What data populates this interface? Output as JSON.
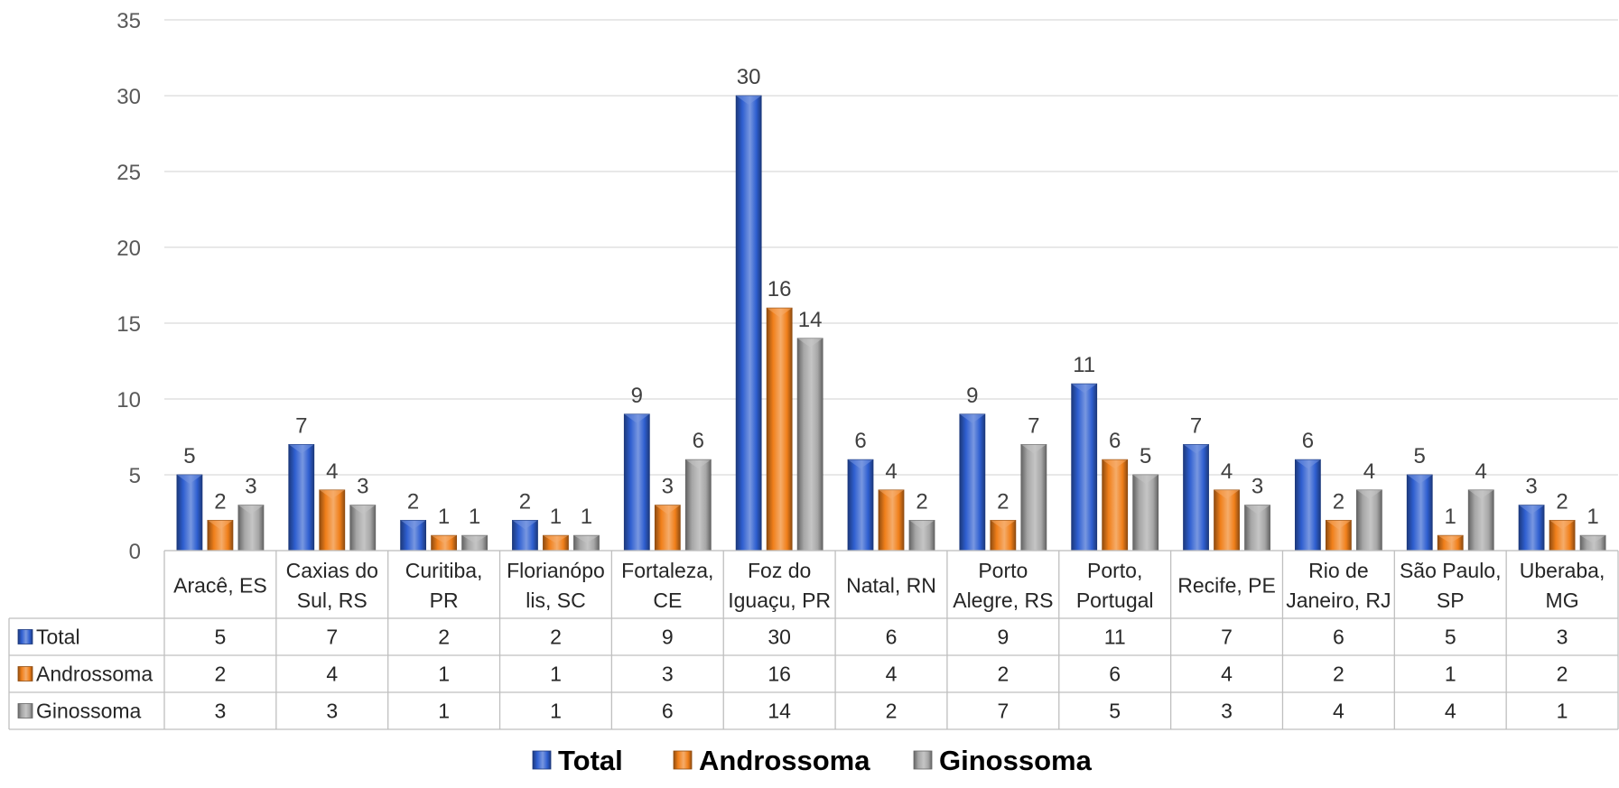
{
  "chart_data": {
    "type": "bar",
    "title": "",
    "xlabel": "",
    "ylabel": "",
    "ylim": [
      0,
      35
    ],
    "yticks": [
      0,
      5,
      10,
      15,
      20,
      25,
      30,
      35
    ],
    "grid": true,
    "legend_position": "bottom",
    "categories": [
      [
        "Aracê, ES"
      ],
      [
        "Caxias do",
        "Sul, RS"
      ],
      [
        "Curitiba,",
        "PR"
      ],
      [
        "Florianópo",
        "lis, SC"
      ],
      [
        "Fortaleza,",
        "CE"
      ],
      [
        "Foz do",
        "Iguaçu, PR"
      ],
      [
        "Natal, RN"
      ],
      [
        "Porto",
        "Alegre, RS"
      ],
      [
        "Porto,",
        "Portugal"
      ],
      [
        "Recife, PE"
      ],
      [
        "Rio de",
        "Janeiro, RJ"
      ],
      [
        "São Paulo,",
        "SP"
      ],
      [
        "Uberaba,",
        "MG"
      ]
    ],
    "series": [
      {
        "name": "Total",
        "color": "#2f5fd0",
        "values": [
          5,
          7,
          2,
          2,
          9,
          30,
          6,
          9,
          11,
          7,
          6,
          5,
          3
        ]
      },
      {
        "name": "Androssoma",
        "color": "#f07f1a",
        "values": [
          2,
          4,
          1,
          1,
          3,
          16,
          4,
          2,
          6,
          4,
          2,
          1,
          2
        ]
      },
      {
        "name": "Ginossoma",
        "color": "#a6a6a6",
        "values": [
          3,
          3,
          1,
          1,
          6,
          14,
          2,
          7,
          5,
          3,
          4,
          4,
          1
        ]
      }
    ],
    "data_table": true
  }
}
